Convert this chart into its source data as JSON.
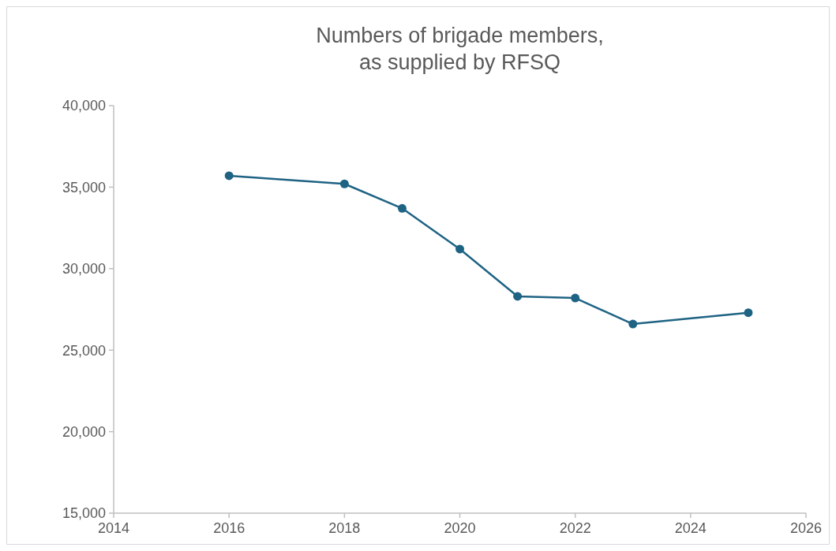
{
  "chart_data": {
    "type": "line",
    "title": "Numbers of brigade members,\nas supplied by RFSQ",
    "x": [
      2016,
      2018,
      2019,
      2020,
      2021,
      2022,
      2023,
      2025
    ],
    "series": [
      {
        "color": "#1f6384",
        "values": [
          35700,
          35200,
          33700,
          31200,
          28300,
          28200,
          26600,
          27300
        ]
      }
    ],
    "xlim": [
      2014,
      2026
    ],
    "xticks": [
      2014,
      2016,
      2018,
      2020,
      2022,
      2024,
      2026
    ],
    "ylim": [
      15000,
      40000
    ],
    "yticks": [
      {
        "value": 15000,
        "label": "15,000"
      },
      {
        "value": 20000,
        "label": "20,000"
      },
      {
        "value": 25000,
        "label": "25,000"
      },
      {
        "value": 30000,
        "label": "30,000"
      },
      {
        "value": 35000,
        "label": "35,000"
      },
      {
        "value": 40000,
        "label": "40,000"
      }
    ],
    "marker": "circle",
    "line_style": "solid"
  }
}
